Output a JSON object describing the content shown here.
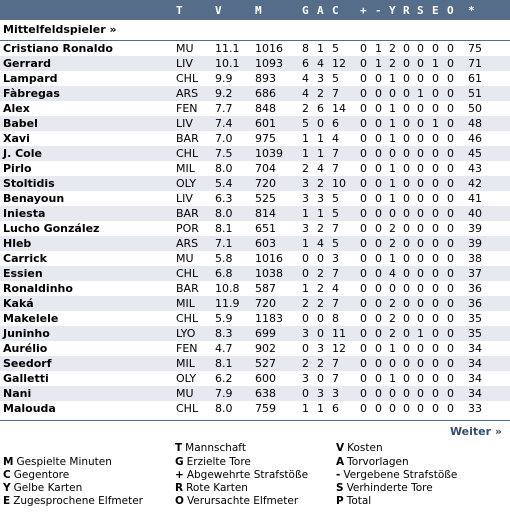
{
  "header": {
    "cols": [
      "T",
      "V",
      "M",
      "G",
      "A",
      "C",
      "+",
      "-",
      "Y",
      "R",
      "S",
      "E",
      "O",
      "*"
    ]
  },
  "section_title": "Mittelfeldspieler »",
  "players": [
    {
      "name": "Cristiano Ronaldo",
      "team": "MU",
      "v": "11.1",
      "m": "1016",
      "g": "8",
      "a": "1",
      "c": "5",
      "plus": "0",
      "minus": "1",
      "y": "2",
      "r": "0",
      "s": "0",
      "e": "0",
      "o": "0",
      "p": "75"
    },
    {
      "name": "Gerrard",
      "team": "LIV",
      "v": "10.1",
      "m": "1093",
      "g": "6",
      "a": "4",
      "c": "12",
      "plus": "0",
      "minus": "1",
      "y": "2",
      "r": "0",
      "s": "0",
      "e": "1",
      "o": "0",
      "p": "71"
    },
    {
      "name": "Lampard",
      "team": "CHL",
      "v": "9.9",
      "m": "893",
      "g": "4",
      "a": "3",
      "c": "5",
      "plus": "0",
      "minus": "0",
      "y": "1",
      "r": "0",
      "s": "0",
      "e": "0",
      "o": "0",
      "p": "61"
    },
    {
      "name": "Fàbregas",
      "team": "ARS",
      "v": "9.2",
      "m": "686",
      "g": "4",
      "a": "2",
      "c": "7",
      "plus": "0",
      "minus": "0",
      "y": "0",
      "r": "0",
      "s": "1",
      "e": "0",
      "o": "0",
      "p": "51"
    },
    {
      "name": "Alex",
      "team": "FEN",
      "v": "7.7",
      "m": "848",
      "g": "2",
      "a": "6",
      "c": "14",
      "plus": "0",
      "minus": "0",
      "y": "1",
      "r": "0",
      "s": "0",
      "e": "0",
      "o": "0",
      "p": "50"
    },
    {
      "name": "Babel",
      "team": "LIV",
      "v": "7.4",
      "m": "601",
      "g": "5",
      "a": "0",
      "c": "6",
      "plus": "0",
      "minus": "0",
      "y": "1",
      "r": "0",
      "s": "0",
      "e": "1",
      "o": "0",
      "p": "48"
    },
    {
      "name": "Xavi",
      "team": "BAR",
      "v": "7.0",
      "m": "975",
      "g": "1",
      "a": "1",
      "c": "4",
      "plus": "0",
      "minus": "0",
      "y": "1",
      "r": "0",
      "s": "0",
      "e": "0",
      "o": "0",
      "p": "46"
    },
    {
      "name": "J. Cole",
      "team": "CHL",
      "v": "7.5",
      "m": "1039",
      "g": "1",
      "a": "1",
      "c": "7",
      "plus": "0",
      "minus": "0",
      "y": "0",
      "r": "0",
      "s": "0",
      "e": "0",
      "o": "0",
      "p": "45"
    },
    {
      "name": "Pirlo",
      "team": "MIL",
      "v": "8.0",
      "m": "704",
      "g": "2",
      "a": "4",
      "c": "7",
      "plus": "0",
      "minus": "0",
      "y": "1",
      "r": "0",
      "s": "0",
      "e": "0",
      "o": "0",
      "p": "43"
    },
    {
      "name": "Stoltidis",
      "team": "OLY",
      "v": "5.4",
      "m": "720",
      "g": "3",
      "a": "2",
      "c": "10",
      "plus": "0",
      "minus": "0",
      "y": "1",
      "r": "0",
      "s": "0",
      "e": "0",
      "o": "0",
      "p": "42"
    },
    {
      "name": "Benayoun",
      "team": "LIV",
      "v": "6.3",
      "m": "525",
      "g": "3",
      "a": "3",
      "c": "5",
      "plus": "0",
      "minus": "0",
      "y": "1",
      "r": "0",
      "s": "0",
      "e": "0",
      "o": "0",
      "p": "41"
    },
    {
      "name": "Iniesta",
      "team": "BAR",
      "v": "8.0",
      "m": "814",
      "g": "1",
      "a": "1",
      "c": "5",
      "plus": "0",
      "minus": "0",
      "y": "0",
      "r": "0",
      "s": "0",
      "e": "0",
      "o": "0",
      "p": "40"
    },
    {
      "name": "Lucho González",
      "team": "POR",
      "v": "8.1",
      "m": "651",
      "g": "3",
      "a": "2",
      "c": "7",
      "plus": "0",
      "minus": "0",
      "y": "2",
      "r": "0",
      "s": "0",
      "e": "0",
      "o": "0",
      "p": "39"
    },
    {
      "name": "Hleb",
      "team": "ARS",
      "v": "7.1",
      "m": "603",
      "g": "1",
      "a": "4",
      "c": "5",
      "plus": "0",
      "minus": "0",
      "y": "2",
      "r": "0",
      "s": "0",
      "e": "0",
      "o": "0",
      "p": "39"
    },
    {
      "name": "Carrick",
      "team": "MU",
      "v": "5.8",
      "m": "1016",
      "g": "0",
      "a": "0",
      "c": "3",
      "plus": "0",
      "minus": "0",
      "y": "1",
      "r": "0",
      "s": "0",
      "e": "0",
      "o": "0",
      "p": "38"
    },
    {
      "name": "Essien",
      "team": "CHL",
      "v": "6.8",
      "m": "1038",
      "g": "0",
      "a": "2",
      "c": "7",
      "plus": "0",
      "minus": "0",
      "y": "4",
      "r": "0",
      "s": "0",
      "e": "0",
      "o": "0",
      "p": "37"
    },
    {
      "name": "Ronaldinho",
      "team": "BAR",
      "v": "10.8",
      "m": "587",
      "g": "1",
      "a": "2",
      "c": "4",
      "plus": "0",
      "minus": "0",
      "y": "0",
      "r": "0",
      "s": "0",
      "e": "0",
      "o": "0",
      "p": "36"
    },
    {
      "name": "Kaká",
      "team": "MIL",
      "v": "11.9",
      "m": "720",
      "g": "2",
      "a": "2",
      "c": "7",
      "plus": "0",
      "minus": "0",
      "y": "2",
      "r": "0",
      "s": "0",
      "e": "0",
      "o": "0",
      "p": "36"
    },
    {
      "name": "Makelele",
      "team": "CHL",
      "v": "5.9",
      "m": "1183",
      "g": "0",
      "a": "0",
      "c": "8",
      "plus": "0",
      "minus": "0",
      "y": "2",
      "r": "0",
      "s": "0",
      "e": "0",
      "o": "0",
      "p": "35"
    },
    {
      "name": "Juninho",
      "team": "LYO",
      "v": "8.3",
      "m": "699",
      "g": "3",
      "a": "0",
      "c": "11",
      "plus": "0",
      "minus": "0",
      "y": "2",
      "r": "0",
      "s": "1",
      "e": "0",
      "o": "0",
      "p": "35"
    },
    {
      "name": "Aurélio",
      "team": "FEN",
      "v": "4.7",
      "m": "902",
      "g": "0",
      "a": "3",
      "c": "12",
      "plus": "0",
      "minus": "0",
      "y": "1",
      "r": "0",
      "s": "0",
      "e": "0",
      "o": "0",
      "p": "34"
    },
    {
      "name": "Seedorf",
      "team": "MIL",
      "v": "8.1",
      "m": "527",
      "g": "2",
      "a": "2",
      "c": "7",
      "plus": "0",
      "minus": "0",
      "y": "0",
      "r": "0",
      "s": "0",
      "e": "0",
      "o": "0",
      "p": "34"
    },
    {
      "name": "Galletti",
      "team": "OLY",
      "v": "6.2",
      "m": "600",
      "g": "3",
      "a": "0",
      "c": "7",
      "plus": "0",
      "minus": "0",
      "y": "1",
      "r": "0",
      "s": "0",
      "e": "0",
      "o": "0",
      "p": "34"
    },
    {
      "name": "Nani",
      "team": "MU",
      "v": "7.9",
      "m": "638",
      "g": "0",
      "a": "3",
      "c": "3",
      "plus": "0",
      "minus": "0",
      "y": "0",
      "r": "0",
      "s": "0",
      "e": "0",
      "o": "0",
      "p": "34"
    },
    {
      "name": "Malouda",
      "team": "CHL",
      "v": "8.0",
      "m": "759",
      "g": "1",
      "a": "1",
      "c": "6",
      "plus": "0",
      "minus": "0",
      "y": "0",
      "r": "0",
      "s": "0",
      "e": "0",
      "o": "0",
      "p": "33"
    }
  ],
  "weiter": "Weiter »",
  "legend": {
    "T": "Mannschaft",
    "V": "Kosten",
    "M": "Gespielte Minuten",
    "G": "Erzielte Tore",
    "A": "Torvorlagen",
    "C": "Gegentore",
    "+": "Abgewehrte Strafstöße",
    "-": "Vergebene Strafstöße",
    "Y": "Gelbe Karten",
    "R": "Rote Karten",
    "S": "Verhinderte Tore",
    "E": "Zugesprochene Elfmeter",
    "O": "Verursachte Elfmeter",
    "P": "Total"
  },
  "colors": {
    "header_bg": "#566d8a",
    "alt_row": "#e6e9ef",
    "link": "#334c6e"
  }
}
